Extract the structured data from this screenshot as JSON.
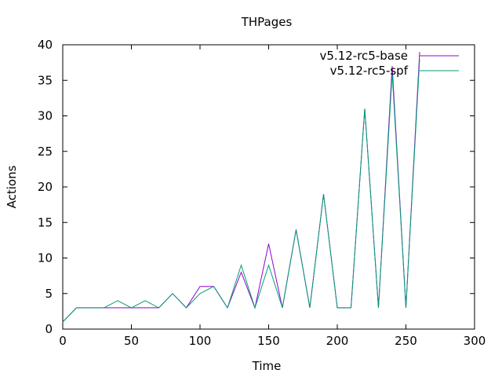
{
  "chart_data": {
    "type": "line",
    "title": "THPages",
    "xlabel": "Time",
    "ylabel": "Actions",
    "xlim": [
      0,
      300
    ],
    "ylim": [
      0,
      40
    ],
    "xticks": [
      0,
      50,
      100,
      150,
      200,
      250,
      300
    ],
    "yticks": [
      0,
      5,
      10,
      15,
      20,
      25,
      30,
      35,
      40
    ],
    "grid": false,
    "legend_position": "top-right",
    "series": [
      {
        "name": "v5.12-rc5-base",
        "color": "#9400d3",
        "dash": "solid",
        "x": [
          0,
          10,
          20,
          30,
          40,
          50,
          60,
          70,
          80,
          90,
          100,
          110,
          120,
          130,
          140,
          150,
          160,
          170,
          180,
          190,
          200,
          210,
          220,
          230,
          240,
          250,
          260
        ],
        "y": [
          1,
          3,
          3,
          3,
          3,
          3,
          3,
          3,
          5,
          3,
          6,
          6,
          3,
          8,
          3,
          12,
          3,
          14,
          3,
          19,
          3,
          3,
          31,
          3,
          37,
          3,
          39
        ]
      },
      {
        "name": "v5.12-rc5-spf",
        "color": "#009e73",
        "dash": "solid",
        "x": [
          0,
          10,
          20,
          30,
          40,
          50,
          60,
          70,
          80,
          90,
          100,
          110,
          120,
          130,
          140,
          150,
          160,
          170,
          180,
          190,
          200,
          210,
          220,
          230,
          240,
          250,
          260
        ],
        "y": [
          1,
          3,
          3,
          3,
          4,
          3,
          4,
          3,
          5,
          3,
          5,
          6,
          3,
          9,
          3,
          9,
          3,
          14,
          3,
          19,
          3,
          3,
          31,
          3,
          36,
          3,
          38
        ]
      }
    ]
  }
}
